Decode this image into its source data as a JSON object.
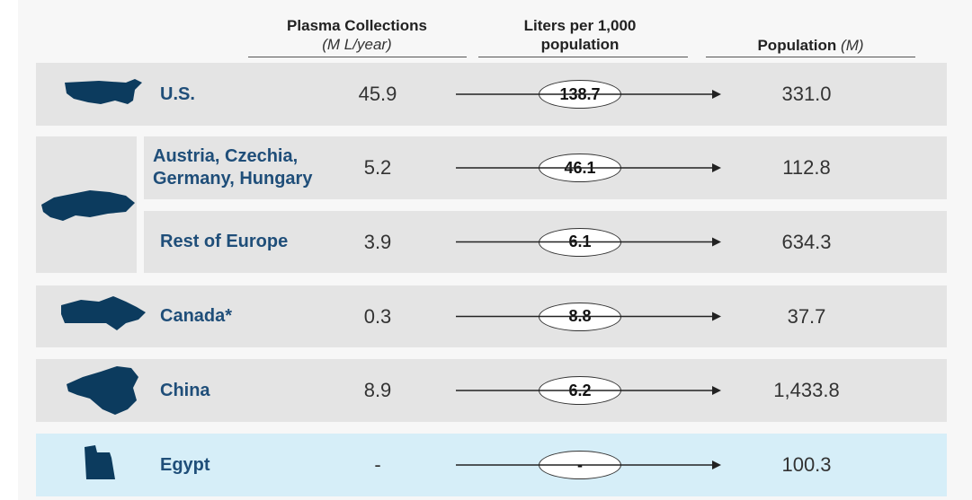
{
  "header": {
    "plasma": {
      "title": "Plasma Collections",
      "unit": "(M L/year)"
    },
    "liters": {
      "title": "Liters per 1,000 population"
    },
    "population": {
      "title": "Population",
      "unit": "(M)"
    }
  },
  "rows": [
    {
      "region": "U.S.",
      "plasma": "45.9",
      "liters": "138.7",
      "population": "331.0"
    },
    {
      "region": "Austria, Czechia, Germany, Hungary",
      "plasma": "5.2",
      "liters": "46.1",
      "population": "112.8"
    },
    {
      "region": "Rest of Europe",
      "plasma": "3.9",
      "liters": "6.1",
      "population": "634.3"
    },
    {
      "region": "Canada*",
      "plasma": "0.3",
      "liters": "8.8",
      "population": "37.7"
    },
    {
      "region": "China",
      "plasma": "8.9",
      "liters": "6.2",
      "population": "1,433.8"
    },
    {
      "region": "Egypt",
      "plasma": "-",
      "liters": "-",
      "population": "100.3"
    }
  ]
}
